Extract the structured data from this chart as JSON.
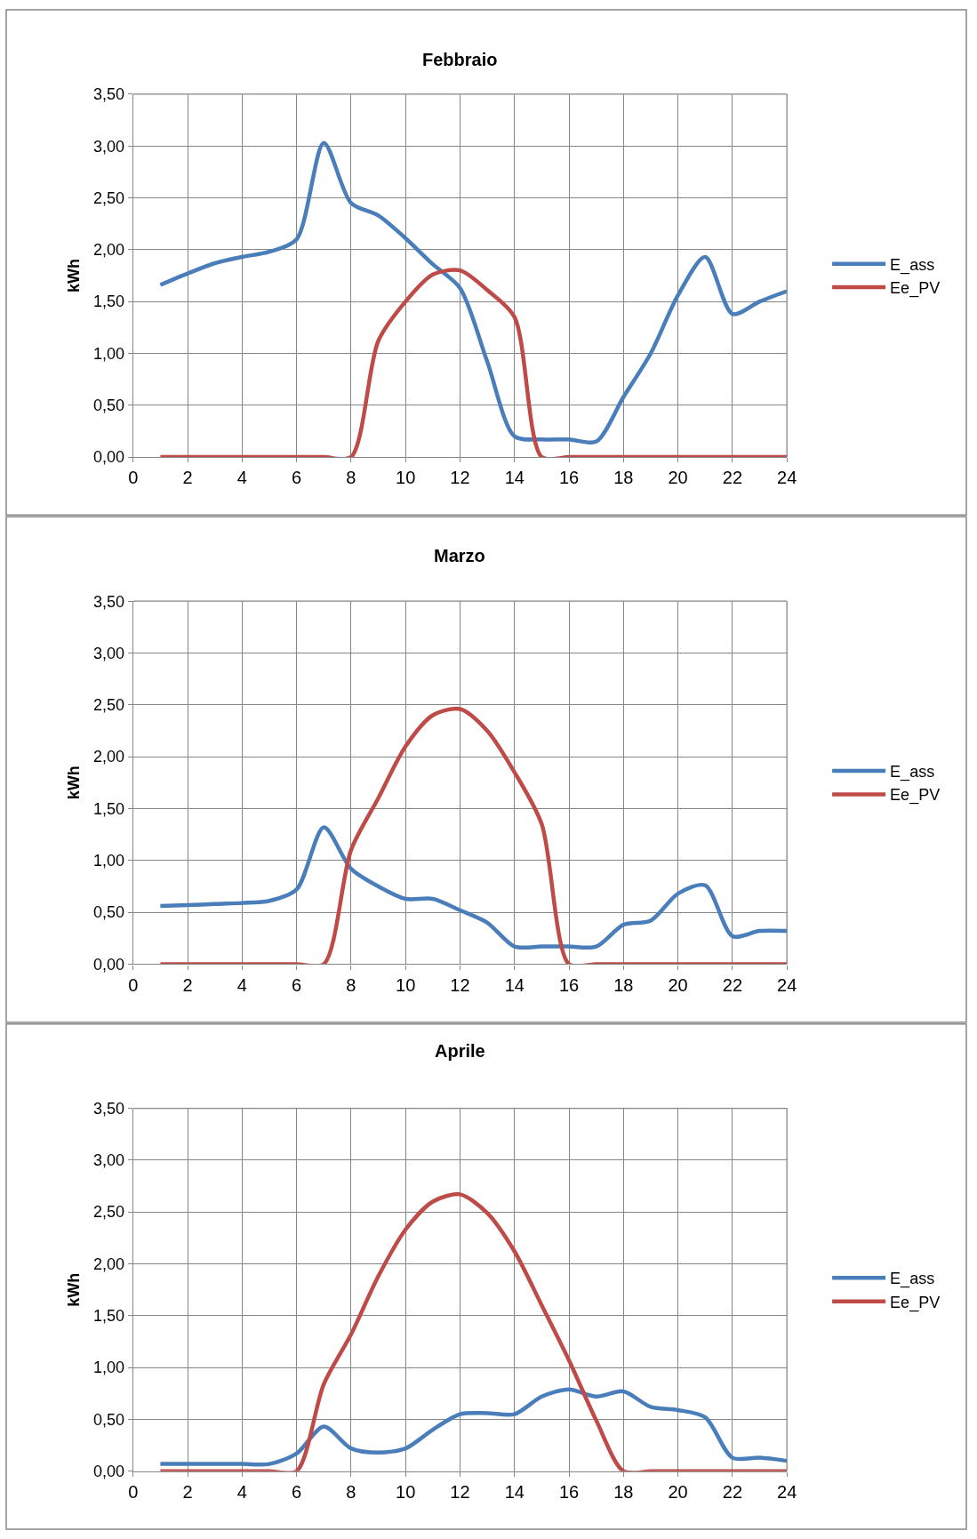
{
  "chart_data": [
    {
      "type": "line",
      "title": "Febbraio",
      "ylabel": "kWh",
      "x": [
        1,
        2,
        3,
        4,
        5,
        6,
        7,
        8,
        9,
        10,
        11,
        12,
        13,
        14,
        15,
        16,
        17,
        18,
        19,
        20,
        21,
        22,
        23,
        24
      ],
      "xlim": [
        0,
        24
      ],
      "xticks": [
        0,
        2,
        4,
        6,
        8,
        10,
        12,
        14,
        16,
        18,
        20,
        22,
        24
      ],
      "ylim": [
        0,
        3.5
      ],
      "yticks": [
        {
          "value": 0,
          "label": "0,00"
        },
        {
          "value": 0.5,
          "label": "0,50"
        },
        {
          "value": 1,
          "label": "1,00"
        },
        {
          "value": 1.5,
          "label": "1,50"
        },
        {
          "value": 2,
          "label": "2,00"
        },
        {
          "value": 2.5,
          "label": "2,50"
        },
        {
          "value": 3,
          "label": "3,00"
        },
        {
          "value": 3.5,
          "label": "3,50"
        }
      ],
      "grid": true,
      "legend": "right",
      "series": [
        {
          "name": "E_ass",
          "color": "#4a7ebb",
          "values": [
            1.66,
            1.77,
            1.87,
            1.93,
            1.98,
            2.1,
            3.03,
            2.45,
            2.33,
            2.11,
            1.86,
            1.63,
            0.92,
            0.2,
            0.17,
            0.17,
            0.15,
            0.58,
            1.0,
            1.56,
            1.93,
            1.38,
            1.5,
            1.6
          ]
        },
        {
          "name": "Ee_PV",
          "color": "#be4b48",
          "values": [
            0,
            0,
            0,
            0,
            0,
            0,
            0,
            0,
            1.12,
            1.5,
            1.76,
            1.8,
            1.61,
            1.35,
            0,
            0,
            0,
            0,
            0,
            0,
            0,
            0,
            0,
            0
          ]
        }
      ]
    },
    {
      "type": "line",
      "title": "Marzo",
      "ylabel": "kWh",
      "x": [
        1,
        2,
        3,
        4,
        5,
        6,
        7,
        8,
        9,
        10,
        11,
        12,
        13,
        14,
        15,
        16,
        17,
        18,
        19,
        20,
        21,
        22,
        23,
        24
      ],
      "xlim": [
        0,
        24
      ],
      "xticks": [
        0,
        2,
        4,
        6,
        8,
        10,
        12,
        14,
        16,
        18,
        20,
        22,
        24
      ],
      "ylim": [
        0,
        3.5
      ],
      "yticks": [
        {
          "value": 0,
          "label": "0,00"
        },
        {
          "value": 0.5,
          "label": "0,50"
        },
        {
          "value": 1,
          "label": "1,00"
        },
        {
          "value": 1.5,
          "label": "1,50"
        },
        {
          "value": 2,
          "label": "2,00"
        },
        {
          "value": 2.5,
          "label": "2,50"
        },
        {
          "value": 3,
          "label": "3,00"
        },
        {
          "value": 3.5,
          "label": "3,50"
        }
      ],
      "grid": true,
      "legend": "right",
      "series": [
        {
          "name": "E_ass",
          "color": "#4a7ebb",
          "values": [
            0.56,
            0.57,
            0.58,
            0.59,
            0.61,
            0.72,
            1.32,
            0.92,
            0.75,
            0.63,
            0.63,
            0.52,
            0.4,
            0.17,
            0.17,
            0.17,
            0.17,
            0.38,
            0.42,
            0.68,
            0.76,
            0.27,
            0.32,
            0.32
          ]
        },
        {
          "name": "Ee_PV",
          "color": "#be4b48",
          "values": [
            0,
            0,
            0,
            0,
            0,
            0,
            0,
            1.1,
            1.6,
            2.1,
            2.4,
            2.46,
            2.25,
            1.85,
            1.35,
            0,
            0,
            0,
            0,
            0,
            0,
            0,
            0,
            0
          ]
        }
      ]
    },
    {
      "type": "line",
      "title": "Aprile",
      "ylabel": "kWh",
      "x": [
        1,
        2,
        3,
        4,
        5,
        6,
        7,
        8,
        9,
        10,
        11,
        12,
        13,
        14,
        15,
        16,
        17,
        18,
        19,
        20,
        21,
        22,
        23,
        24
      ],
      "xlim": [
        0,
        24
      ],
      "xticks": [
        0,
        2,
        4,
        6,
        8,
        10,
        12,
        14,
        16,
        18,
        20,
        22,
        24
      ],
      "ylim": [
        0,
        3.5
      ],
      "yticks": [
        {
          "value": 0,
          "label": "0,00"
        },
        {
          "value": 0.5,
          "label": "0,50"
        },
        {
          "value": 1,
          "label": "1,00"
        },
        {
          "value": 1.5,
          "label": "1,50"
        },
        {
          "value": 2,
          "label": "2,00"
        },
        {
          "value": 2.5,
          "label": "2,50"
        },
        {
          "value": 3,
          "label": "3,00"
        },
        {
          "value": 3.5,
          "label": "3,50"
        }
      ],
      "grid": true,
      "legend": "right",
      "series": [
        {
          "name": "E_ass",
          "color": "#4a7ebb",
          "values": [
            0.07,
            0.07,
            0.07,
            0.07,
            0.07,
            0.17,
            0.43,
            0.22,
            0.18,
            0.22,
            0.4,
            0.55,
            0.56,
            0.55,
            0.72,
            0.79,
            0.72,
            0.77,
            0.62,
            0.59,
            0.52,
            0.13,
            0.13,
            0.1
          ]
        },
        {
          "name": "Ee_PV",
          "color": "#be4b48",
          "values": [
            0,
            0,
            0,
            0,
            0,
            0,
            0.84,
            1.32,
            1.88,
            2.33,
            2.6,
            2.67,
            2.49,
            2.12,
            1.6,
            1.07,
            0.49,
            0,
            0,
            0,
            0,
            0,
            0,
            0
          ]
        }
      ]
    }
  ]
}
